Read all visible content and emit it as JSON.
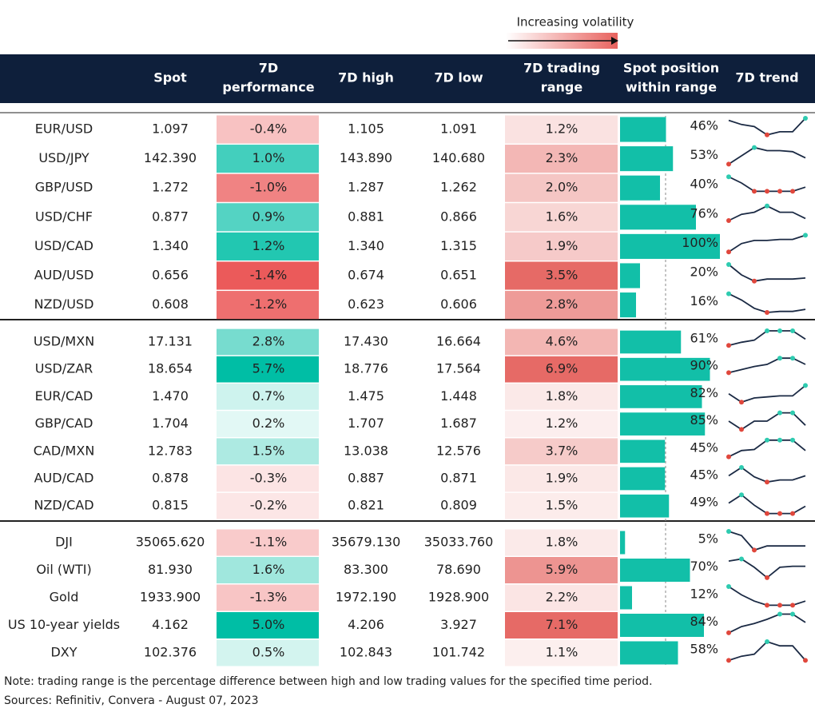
{
  "legend": {
    "label": "Increasing volatility"
  },
  "table": {
    "headers": [
      [
        "Spot"
      ],
      [
        "7D",
        "performance"
      ],
      [
        "7D high"
      ],
      [
        "7D low"
      ],
      [
        "7D trading",
        "range"
      ],
      [
        "Spot position",
        "within range"
      ],
      [
        "7D trend"
      ]
    ],
    "groups": [
      [
        {
          "name": "EUR/USD",
          "spot": "1.097",
          "perf": "-0.4%",
          "high": "1.105",
          "low": "1.091",
          "range": "1.2%",
          "position": 46,
          "position_label": "46%",
          "trend": [
            90,
            70,
            60,
            20,
            35,
            35,
            100
          ]
        },
        {
          "name": "USD/JPY",
          "spot": "142.390",
          "perf": "1.0%",
          "high": "143.890",
          "low": "140.680",
          "range": "2.3%",
          "position": 53,
          "position_label": "53%",
          "trend": [
            20,
            60,
            100,
            85,
            85,
            80,
            50
          ]
        },
        {
          "name": "GBP/USD",
          "spot": "1.272",
          "perf": "-1.0%",
          "high": "1.287",
          "low": "1.262",
          "range": "2.0%",
          "position": 40,
          "position_label": "40%",
          "trend": [
            100,
            70,
            30,
            30,
            30,
            30,
            50
          ]
        },
        {
          "name": "USD/CHF",
          "spot": "0.877",
          "perf": "0.9%",
          "high": "0.881",
          "low": "0.866",
          "range": "1.6%",
          "position": 76,
          "position_label": "76%",
          "trend": [
            30,
            60,
            70,
            100,
            70,
            70,
            40
          ]
        },
        {
          "name": "USD/CAD",
          "spot": "1.340",
          "perf": "1.2%",
          "high": "1.340",
          "low": "1.315",
          "range": "1.9%",
          "position": 100,
          "position_label": "100%",
          "trend": [
            20,
            60,
            75,
            75,
            80,
            80,
            100
          ]
        },
        {
          "name": "AUD/USD",
          "spot": "0.656",
          "perf": "-1.4%",
          "high": "0.674",
          "low": "0.651",
          "range": "3.5%",
          "position": 20,
          "position_label": "20%",
          "trend": [
            100,
            50,
            20,
            30,
            30,
            30,
            35
          ]
        },
        {
          "name": "NZD/USD",
          "spot": "0.608",
          "perf": "-1.2%",
          "high": "0.623",
          "low": "0.606",
          "range": "2.8%",
          "position": 16,
          "position_label": "16%",
          "trend": [
            100,
            70,
            30,
            10,
            15,
            15,
            25
          ]
        }
      ],
      [
        {
          "name": "USD/MXN",
          "spot": "17.131",
          "perf": "2.8%",
          "high": "17.430",
          "low": "16.664",
          "range": "4.6%",
          "position": 61,
          "position_label": "61%",
          "trend": [
            30,
            45,
            55,
            100,
            100,
            100,
            60
          ]
        },
        {
          "name": "USD/ZAR",
          "spot": "18.654",
          "perf": "5.7%",
          "high": "18.776",
          "low": "17.564",
          "range": "6.9%",
          "position": 90,
          "position_label": "90%",
          "trend": [
            30,
            45,
            60,
            70,
            100,
            100,
            70
          ]
        },
        {
          "name": "EUR/CAD",
          "spot": "1.470",
          "perf": "0.7%",
          "high": "1.475",
          "low": "1.448",
          "range": "1.8%",
          "position": 82,
          "position_label": "82%",
          "trend": [
            60,
            20,
            40,
            45,
            50,
            50,
            100
          ]
        },
        {
          "name": "GBP/CAD",
          "spot": "1.704",
          "perf": "0.2%",
          "high": "1.707",
          "low": "1.687",
          "range": "1.2%",
          "position": 85,
          "position_label": "85%",
          "trend": [
            60,
            20,
            60,
            60,
            100,
            100,
            40
          ]
        },
        {
          "name": "CAD/MXN",
          "spot": "12.783",
          "perf": "1.5%",
          "high": "13.038",
          "low": "12.576",
          "range": "3.7%",
          "position": 45,
          "position_label": "45%",
          "trend": [
            20,
            50,
            55,
            100,
            100,
            100,
            50
          ]
        },
        {
          "name": "AUD/CAD",
          "spot": "0.878",
          "perf": "-0.3%",
          "high": "0.887",
          "low": "0.871",
          "range": "1.9%",
          "position": 45,
          "position_label": "45%",
          "trend": [
            60,
            100,
            55,
            30,
            40,
            40,
            60
          ]
        },
        {
          "name": "NZD/CAD",
          "spot": "0.815",
          "perf": "-0.2%",
          "high": "0.821",
          "low": "0.809",
          "range": "1.5%",
          "position": 49,
          "position_label": "49%",
          "trend": [
            60,
            100,
            50,
            10,
            10,
            10,
            45
          ]
        }
      ],
      [
        {
          "name": "DJI",
          "spot": "35065.620",
          "perf": "-1.1%",
          "high": "35679.130",
          "low": "35033.760",
          "range": "1.8%",
          "position": 5,
          "position_label": "5%",
          "trend": [
            100,
            80,
            10,
            30,
            30,
            30,
            30
          ]
        },
        {
          "name": "Oil (WTI)",
          "spot": "81.930",
          "perf": "1.6%",
          "high": "83.300",
          "low": "78.690",
          "range": "5.9%",
          "position": 70,
          "position_label": "70%",
          "trend": [
            90,
            100,
            60,
            10,
            60,
            65,
            65
          ]
        },
        {
          "name": "Gold",
          "spot": "1933.900",
          "perf": "-1.3%",
          "high": "1972.190",
          "low": "1928.900",
          "range": "2.2%",
          "position": 12,
          "position_label": "12%",
          "trend": [
            100,
            60,
            30,
            10,
            10,
            10,
            30
          ]
        },
        {
          "name": "US 10-year yields",
          "spot": "4.162",
          "perf": "5.0%",
          "high": "4.206",
          "low": "3.927",
          "range": "7.1%",
          "position": 84,
          "position_label": "84%",
          "trend": [
            10,
            40,
            55,
            75,
            100,
            100,
            60
          ]
        },
        {
          "name": "DXY",
          "spot": "102.376",
          "perf": "0.5%",
          "high": "102.843",
          "low": "101.742",
          "range": "1.1%",
          "position": 58,
          "position_label": "58%",
          "trend": [
            10,
            30,
            40,
            100,
            80,
            80,
            10
          ]
        }
      ]
    ]
  },
  "notes": [
    "Note: trading range is the percentage difference between high and low trading values for the specified time period.",
    "Sources: Refinitiv, Convera - August 07, 2023"
  ]
}
